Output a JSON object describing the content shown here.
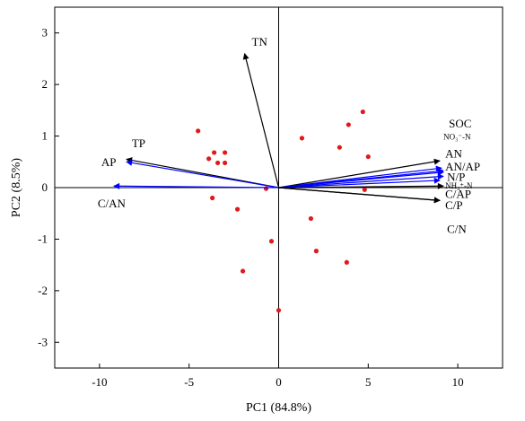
{
  "chart_data": {
    "type": "scatter",
    "title": "",
    "xlabel": "PC1 (84.8%)",
    "ylabel": "PC2 (8.5%)",
    "xlim": [
      -12.5,
      12.5
    ],
    "ylim": [
      -3.5,
      3.5
    ],
    "xticks": [
      -10,
      -5,
      0,
      5,
      10
    ],
    "yticks": [
      -3,
      -2,
      -1,
      0,
      1,
      2,
      3
    ],
    "xtick_labels": [
      "-10",
      "-5",
      "0",
      "5",
      "10"
    ],
    "ytick_labels": [
      "-3",
      "-2",
      "-1",
      "0",
      "1",
      "2",
      "3"
    ],
    "zero_lines": true,
    "grid": false,
    "point_color": "#e0191c",
    "points": [
      {
        "x": -4.5,
        "y": 1.1
      },
      {
        "x": -3.6,
        "y": 0.68
      },
      {
        "x": -3.0,
        "y": 0.68
      },
      {
        "x": -3.9,
        "y": 0.56
      },
      {
        "x": -3.4,
        "y": 0.48
      },
      {
        "x": -3.0,
        "y": 0.48
      },
      {
        "x": -0.7,
        "y": -0.02
      },
      {
        "x": -3.7,
        "y": -0.2
      },
      {
        "x": -2.3,
        "y": -0.42
      },
      {
        "x": -0.4,
        "y": -1.04
      },
      {
        "x": -2.0,
        "y": -1.62
      },
      {
        "x": 0.0,
        "y": -2.38
      },
      {
        "x": 1.3,
        "y": 0.96
      },
      {
        "x": 3.9,
        "y": 1.22
      },
      {
        "x": 4.7,
        "y": 1.47
      },
      {
        "x": 3.4,
        "y": 0.78
      },
      {
        "x": 5.0,
        "y": 0.6
      },
      {
        "x": 4.8,
        "y": -0.04
      },
      {
        "x": 1.8,
        "y": -0.6
      },
      {
        "x": 2.1,
        "y": -1.23
      },
      {
        "x": 3.8,
        "y": -1.45
      }
    ],
    "vectors": [
      {
        "name": "TN",
        "x": -1.9,
        "y": 2.6,
        "color": "#000000"
      },
      {
        "name": "TP",
        "x": -8.5,
        "y": 0.55,
        "color": "#000000"
      },
      {
        "name": "AP",
        "x": -8.5,
        "y": 0.5,
        "color": "#0000ff"
      },
      {
        "name": "C/AN",
        "x": -9.2,
        "y": 0.03,
        "color": "#0000ff"
      },
      {
        "name": "SOC",
        "x": 9.0,
        "y": 0.52,
        "color": "#000000"
      },
      {
        "name": "NO3-N",
        "x": 9.1,
        "y": 0.38,
        "color": "#0000ff"
      },
      {
        "name": "AN",
        "x": 9.2,
        "y": 0.33,
        "color": "#0000ff"
      },
      {
        "name": "AN/AP",
        "x": 9.2,
        "y": 0.3,
        "color": "#0000ff"
      },
      {
        "name": "N/P",
        "x": 9.2,
        "y": 0.22,
        "color": "#0000ff"
      },
      {
        "name": "NH4-N",
        "x": 9.0,
        "y": 0.14,
        "color": "#0000ff"
      },
      {
        "name": "C/AP",
        "x": 9.2,
        "y": 0.03,
        "color": "#000000"
      },
      {
        "name": "C/P",
        "x": 9.0,
        "y": -0.25,
        "color": "#000000"
      },
      {
        "name": "C/N",
        "x": 9.0,
        "y": -0.25,
        "color": "#000000"
      }
    ],
    "vector_labels": [
      {
        "text": "TN",
        "x": -1.5,
        "y": 2.75
      },
      {
        "text": "TP",
        "x": -8.2,
        "y": 0.78
      },
      {
        "text": "AP",
        "x": -9.9,
        "y": 0.42
      },
      {
        "text": "C/AN",
        "x": -10.1,
        "y": -0.38
      },
      {
        "text": "SOC",
        "x": 9.5,
        "y": 1.17
      },
      {
        "text": "NO₃⁻-N",
        "x": 9.2,
        "y": 0.93,
        "small": true
      },
      {
        "text": "AN",
        "x": 9.3,
        "y": 0.58
      },
      {
        "text": "AN/AP",
        "x": 9.3,
        "y": 0.33
      },
      {
        "text": "N/P",
        "x": 9.4,
        "y": 0.13
      },
      {
        "text": "NH₄⁺-N",
        "x": 9.3,
        "y": -0.02,
        "small": true
      },
      {
        "text": "C/AP",
        "x": 9.3,
        "y": -0.2
      },
      {
        "text": "C/P",
        "x": 9.3,
        "y": -0.42
      },
      {
        "text": "C/N",
        "x": 9.4,
        "y": -0.88
      }
    ]
  }
}
